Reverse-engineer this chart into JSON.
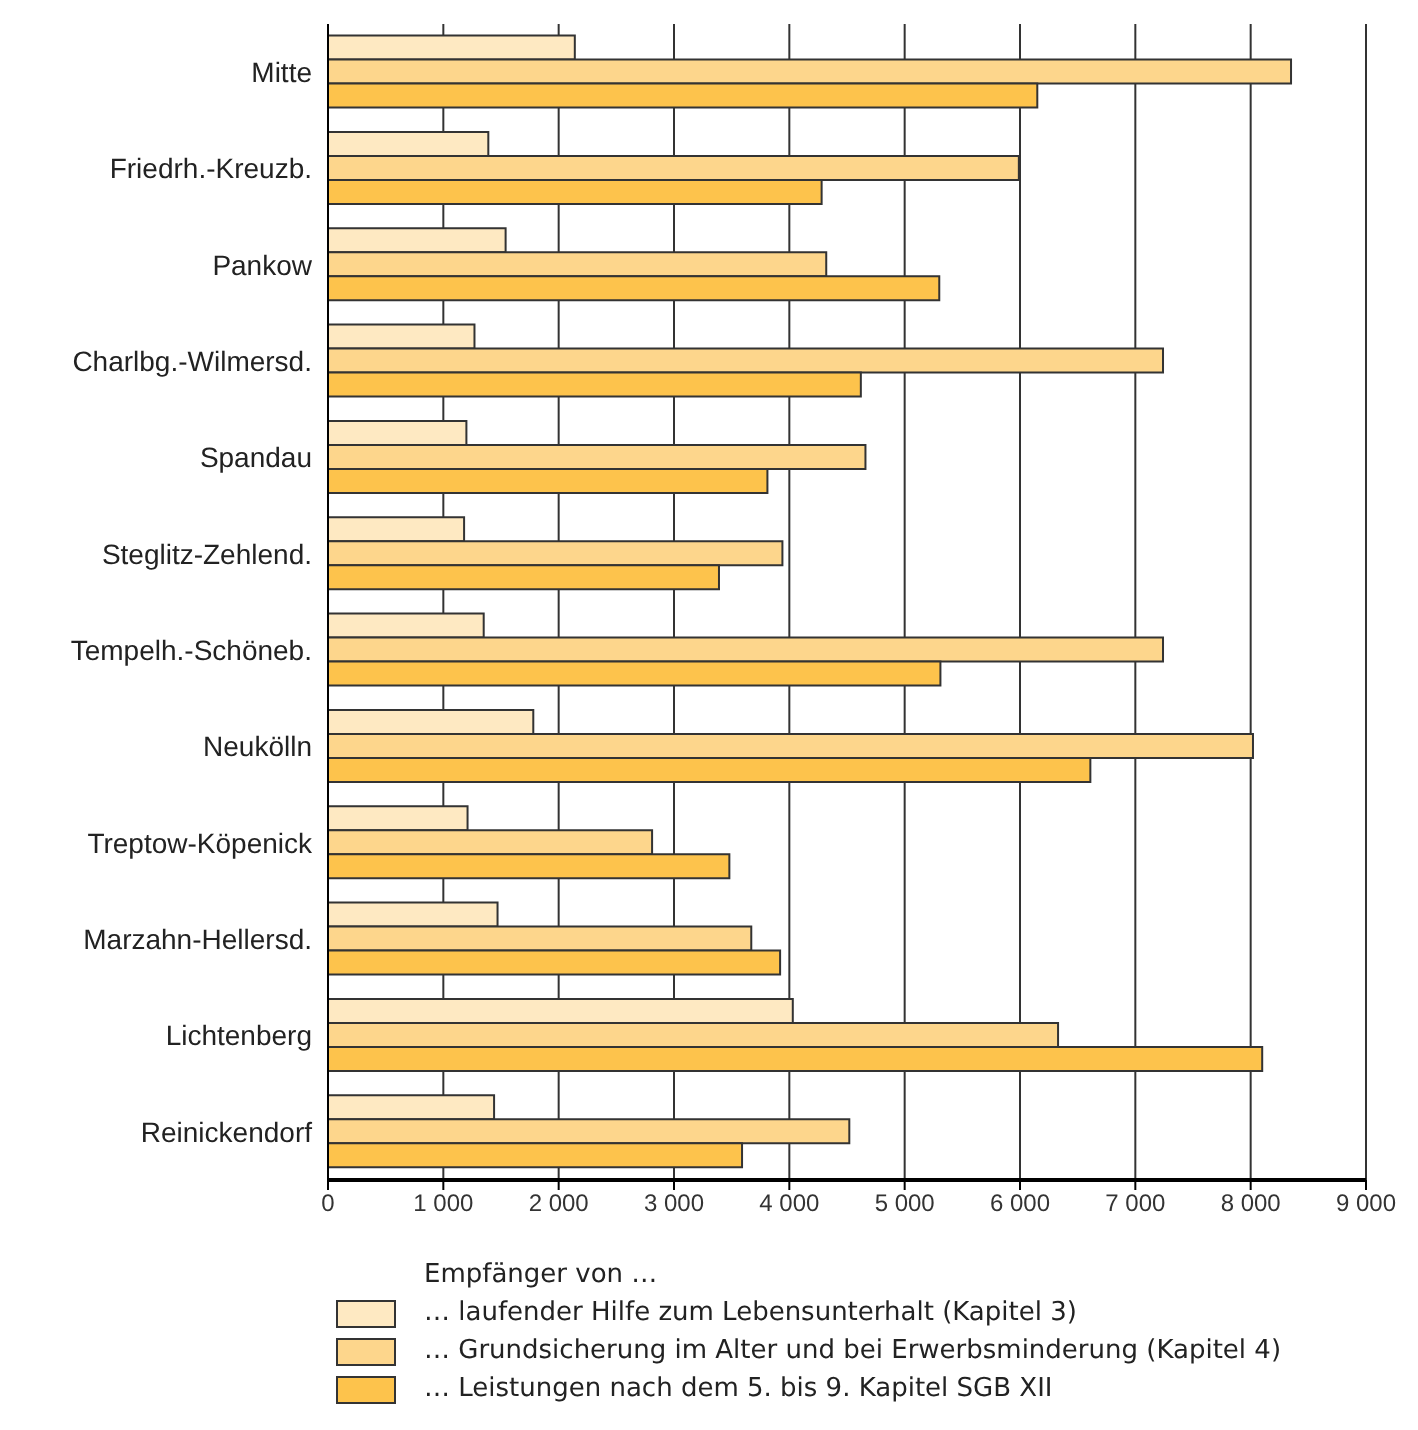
{
  "chart_data": {
    "type": "bar",
    "orientation": "horizontal",
    "legend_title": "Empfänger von …",
    "categories": [
      "Mitte",
      "Friedrh.-Kreuzb.",
      "Pankow",
      "Charlbg.-Wilmersd.",
      "Spandau",
      "Steglitz-Zehlend.",
      "Tempelh.-Schöneb.",
      "Neukölln",
      "Treptow-Köpenick",
      "Marzahn-Hellersd.",
      "Lichtenberg",
      "Reinickendorf"
    ],
    "series": [
      {
        "name": "… laufender Hilfe zum Lebensunterhalt (Kapitel 3)",
        "color": "#fee9c2",
        "values": [
          2140,
          1390,
          1540,
          1270,
          1200,
          1180,
          1350,
          1780,
          1210,
          1470,
          4030,
          1440
        ]
      },
      {
        "name": "… Grundsicherung im Alter und bei Erwerbsminderung (Kapitel 4)",
        "color": "#fdd68c",
        "values": [
          8350,
          5990,
          4320,
          7240,
          4660,
          3940,
          7240,
          8020,
          2810,
          3670,
          6330,
          4520
        ]
      },
      {
        "name": "… Leistungen nach dem 5. bis 9. Kapitel SGB XII",
        "color": "#fdc34c",
        "values": [
          6150,
          4280,
          5300,
          4620,
          3810,
          3390,
          5310,
          6610,
          3480,
          3920,
          8100,
          3590
        ]
      }
    ],
    "xlim": [
      0,
      9000
    ],
    "xticks": [
      0,
      {
        "value": 1000,
        "label": "1 000"
      },
      {
        "value": 2000,
        "label": "2 000"
      },
      {
        "value": 3000,
        "label": "3 000"
      },
      {
        "value": 4000,
        "label": "4 000"
      },
      {
        "value": 5000,
        "label": "5 000"
      },
      {
        "value": 6000,
        "label": "6 000"
      },
      {
        "value": 7000,
        "label": "7 000"
      },
      {
        "value": 8000,
        "label": "8 000"
      },
      {
        "value": 9000,
        "label": "9 000"
      }
    ],
    "grid": "x",
    "legend": "bottom"
  }
}
